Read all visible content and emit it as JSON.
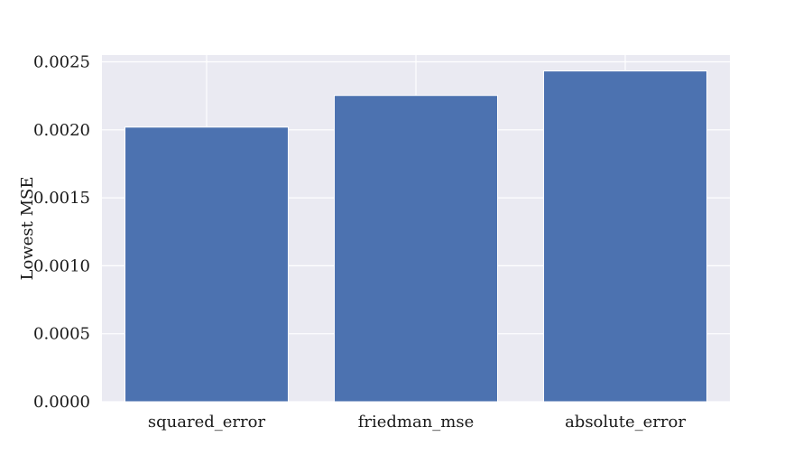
{
  "chart_data": {
    "type": "bar",
    "categories": [
      "squared_error",
      "friedman_mse",
      "absolute_error"
    ],
    "values": [
      0.00202,
      0.002253,
      0.002433
    ],
    "title": "",
    "xlabel": "",
    "ylabel": "Lowest MSE",
    "ylim": [
      0,
      0.00255
    ],
    "yticks": [
      0.0,
      0.0005,
      0.001,
      0.0015,
      0.002,
      0.0025
    ],
    "ytick_labels": [
      "0.0000",
      "0.0005",
      "0.0010",
      "0.0015",
      "0.0020",
      "0.0025"
    ],
    "grid": true,
    "bar_color": "#4c72b0",
    "background_color": "#eaeaf2",
    "grid_color": "#ffffff"
  }
}
